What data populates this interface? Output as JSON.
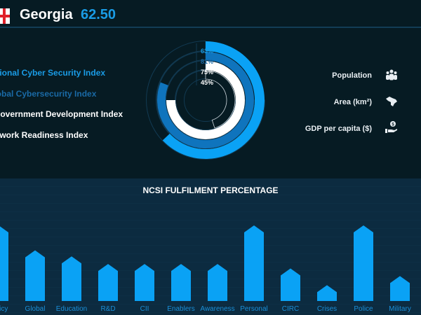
{
  "header": {
    "country": "Georgia",
    "score": "62.50"
  },
  "indices": [
    {
      "label": "National Cyber Security Index",
      "color": "#1aa0f0",
      "percent": "63%",
      "value": 63
    },
    {
      "label": "Global Cybersecurity Index",
      "color": "#1a70b0",
      "percent": "81%",
      "value": 81
    },
    {
      "label": "Government Development Index",
      "color": "#ffffff",
      "percent": "75%",
      "value": 75
    },
    {
      "label": "Network Readiness Index",
      "color": "#ffffff",
      "percent": "45%",
      "value": 45
    }
  ],
  "info": [
    {
      "label": "Population",
      "icon": "people-icon"
    },
    {
      "label": "Area (km²)",
      "icon": "map-icon"
    },
    {
      "label": "GDP per capita ($)",
      "icon": "money-hand-icon"
    }
  ],
  "chart_data": {
    "type": "bar",
    "title": "NCSI FULFILMENT PERCENTAGE",
    "categories": [
      "Policy",
      "Global",
      "Education",
      "R&D",
      "CII",
      "Enablers",
      "Awareness",
      "Personal",
      "CIRC",
      "Crises",
      "Police",
      "Military"
    ],
    "values": [
      100,
      67,
      59,
      49,
      49,
      49,
      49,
      100,
      43,
      21,
      100,
      33
    ],
    "ylim": [
      0,
      100
    ],
    "color": "#0aa2f5"
  }
}
